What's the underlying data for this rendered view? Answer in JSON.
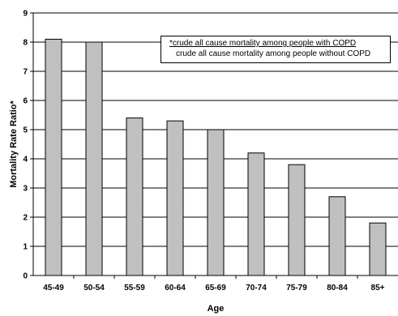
{
  "chart_data": {
    "type": "bar",
    "categories": [
      "45-49",
      "50-54",
      "55-59",
      "60-64",
      "65-69",
      "70-74",
      "75-79",
      "80-84",
      "85+"
    ],
    "values": [
      8.1,
      8.0,
      5.4,
      5.3,
      5.0,
      4.2,
      3.8,
      2.7,
      1.8
    ],
    "xlabel": "Age",
    "ylabel": "Mortality Rate Ratio*",
    "ylim": [
      0,
      9
    ],
    "yticks": [
      0,
      1,
      2,
      3,
      4,
      5,
      6,
      7,
      8,
      9
    ],
    "grid": true,
    "bar_color": "#c0c0c0",
    "annotation": {
      "numerator": "*crude all cause mortality among people with COPD",
      "denominator": "crude all cause mortality among people without COPD"
    }
  }
}
